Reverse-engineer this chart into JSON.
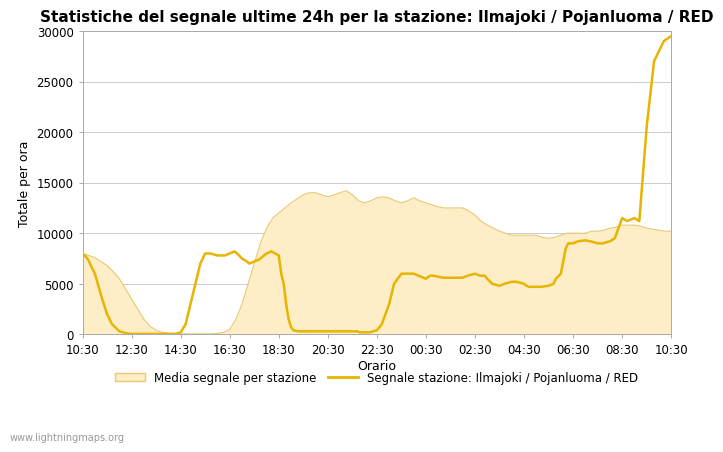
{
  "title": "Statistiche del segnale ultime 24h per la stazione: Ilmajoki / Pojanluoma / RED",
  "xlabel": "Orario",
  "ylabel": "Totale per ora",
  "watermark": "www.lightningmaps.org",
  "legend_area_label": "Media segnale per stazione",
  "legend_line_label": "Segnale stazione: Ilmajoki / Pojanluoma / RED",
  "ylim": [
    0,
    30000
  ],
  "yticks": [
    0,
    5000,
    10000,
    15000,
    20000,
    25000,
    30000
  ],
  "xtick_labels": [
    "10:30",
    "12:30",
    "14:30",
    "16:30",
    "18:30",
    "20:30",
    "22:30",
    "00:30",
    "02:30",
    "04:30",
    "06:30",
    "08:30",
    "10:30"
  ],
  "background_color": "#ffffff",
  "plot_bg_color": "#ffffff",
  "grid_color": "#cccccc",
  "area_fill_color": "#fdeec8",
  "area_edge_color": "#e8c870",
  "line_color": "#e8b400",
  "title_fontsize": 11,
  "axis_label_fontsize": 9,
  "tick_fontsize": 8.5,
  "area_x": [
    0.0,
    0.25,
    0.5,
    0.75,
    1.0,
    1.25,
    1.5,
    1.75,
    2.0,
    2.25,
    2.5,
    2.75,
    3.0,
    3.25,
    3.5,
    3.75,
    4.0,
    4.25,
    4.5,
    4.75,
    5.0,
    5.25,
    5.5,
    5.75,
    6.0,
    6.25,
    6.5,
    6.75,
    7.0,
    7.25,
    7.5,
    7.75,
    8.0,
    8.25,
    8.5,
    8.75,
    9.0,
    9.25,
    9.5,
    9.75,
    10.0,
    10.25,
    10.5,
    10.75,
    11.0,
    11.25,
    11.5,
    11.75,
    12.0,
    12.25,
    12.5,
    12.75,
    13.0,
    13.25,
    13.5,
    13.75,
    14.0,
    14.25,
    14.5,
    14.75,
    15.0,
    15.25,
    15.5,
    15.75,
    16.0,
    16.25,
    16.5,
    16.75,
    17.0,
    17.25,
    17.5,
    17.75,
    18.0,
    18.25,
    18.5,
    18.75,
    19.0,
    19.25,
    19.5,
    19.75,
    20.0,
    20.25,
    20.5,
    20.75,
    21.0,
    21.25,
    21.5,
    21.75,
    22.0,
    22.25,
    22.5,
    22.75,
    23.0,
    23.25,
    23.5,
    23.75,
    24.0
  ],
  "area_y": [
    8000,
    7800,
    7600,
    7200,
    6800,
    6200,
    5500,
    4500,
    3500,
    2500,
    1500,
    800,
    400,
    200,
    100,
    50,
    50,
    50,
    50,
    50,
    50,
    50,
    100,
    200,
    500,
    1500,
    3000,
    5000,
    7000,
    9000,
    10500,
    11500,
    12000,
    12500,
    13000,
    13400,
    13800,
    14000,
    14000,
    13800,
    13600,
    13800,
    14000,
    14200,
    13800,
    13200,
    13000,
    13200,
    13500,
    13600,
    13500,
    13200,
    13000,
    13200,
    13500,
    13200,
    13000,
    12800,
    12600,
    12500,
    12500,
    12500,
    12500,
    12200,
    11800,
    11200,
    10800,
    10500,
    10200,
    10000,
    9800,
    9800,
    9800,
    9800,
    9800,
    9600,
    9500,
    9600,
    9800,
    10000,
    10000,
    10000,
    10000,
    10200,
    10200,
    10300,
    10500,
    10600,
    10800,
    10800,
    10800,
    10700,
    10500,
    10400,
    10300,
    10200,
    10200
  ],
  "line_x": [
    0.0,
    0.2,
    0.5,
    0.8,
    1.0,
    1.2,
    1.5,
    1.8,
    2.0,
    2.2,
    2.5,
    2.7,
    3.0,
    3.1,
    3.2,
    3.3,
    3.4,
    3.5,
    3.6,
    3.7,
    3.8,
    4.0,
    4.2,
    4.5,
    4.8,
    5.0,
    5.2,
    5.5,
    5.8,
    6.0,
    6.2,
    6.3,
    6.5,
    6.7,
    6.8,
    7.0,
    7.2,
    7.5,
    7.7,
    8.0,
    8.1,
    8.2,
    8.3,
    8.4,
    8.5,
    8.6,
    8.8,
    9.0,
    9.2,
    9.5,
    9.8,
    10.0,
    10.2,
    10.5,
    10.8,
    11.0,
    11.2,
    11.3,
    11.5,
    11.7,
    12.0,
    12.2,
    12.5,
    12.7,
    13.0,
    13.2,
    13.5,
    13.7,
    13.9,
    14.0,
    14.1,
    14.2,
    14.3,
    14.5,
    14.7,
    15.0,
    15.2,
    15.5,
    15.7,
    16.0,
    16.2,
    16.4,
    16.5,
    16.7,
    17.0,
    17.2,
    17.5,
    17.7,
    18.0,
    18.1,
    18.2,
    18.3,
    18.5,
    18.7,
    19.0,
    19.2,
    19.3,
    19.5,
    19.7,
    19.8,
    20.0,
    20.2,
    20.5,
    20.7,
    21.0,
    21.2,
    21.5,
    21.7,
    22.0,
    22.2,
    22.5,
    22.7,
    23.0,
    23.3,
    23.7,
    24.0
  ],
  "line_y": [
    8000,
    7500,
    6000,
    3500,
    2000,
    1000,
    300,
    100,
    50,
    50,
    50,
    50,
    50,
    50,
    50,
    50,
    50,
    50,
    50,
    50,
    50,
    200,
    1000,
    4000,
    7000,
    8000,
    8000,
    7800,
    7800,
    8000,
    8200,
    8000,
    7500,
    7200,
    7000,
    7200,
    7400,
    8000,
    8200,
    7800,
    6000,
    5000,
    3000,
    1500,
    700,
    400,
    300,
    300,
    300,
    300,
    300,
    300,
    300,
    300,
    300,
    300,
    300,
    200,
    200,
    200,
    400,
    1000,
    3000,
    5000,
    6000,
    6000,
    6000,
    5800,
    5600,
    5500,
    5700,
    5800,
    5800,
    5700,
    5600,
    5600,
    5600,
    5600,
    5800,
    6000,
    5800,
    5800,
    5500,
    5000,
    4800,
    5000,
    5200,
    5200,
    5000,
    4800,
    4700,
    4700,
    4700,
    4700,
    4800,
    5000,
    5500,
    6000,
    8500,
    9000,
    9000,
    9200,
    9300,
    9200,
    9000,
    9000,
    9200,
    9500,
    11500,
    11200,
    11500,
    11200,
    20500,
    27000,
    29000,
    29500
  ]
}
